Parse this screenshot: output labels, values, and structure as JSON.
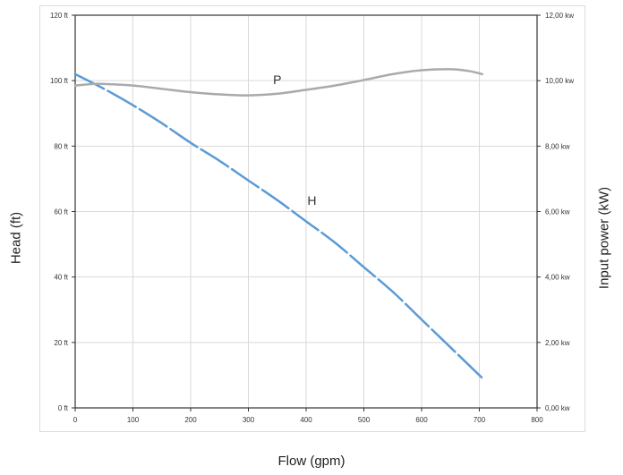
{
  "chart_data": {
    "type": "line",
    "title": "",
    "xlabel": "Flow (gpm)",
    "ylabel": "Head (ft)",
    "y2label": "Input power (kW)",
    "xlim": [
      0,
      800
    ],
    "ylim": [
      0,
      120
    ],
    "y2lim": [
      0,
      12
    ],
    "x_ticks": [
      0,
      100,
      200,
      300,
      400,
      500,
      600,
      700,
      800
    ],
    "y_ticks": [
      "0 ft",
      "20 ft",
      "40 ft",
      "60 ft",
      "80 ft",
      "100 ft",
      "120 ft"
    ],
    "y2_ticks": [
      "0,00 kw",
      "2,00 kw",
      "4,00 kw",
      "6,00 kw",
      "8,00 kw",
      "10,00 kw",
      "12,00 kw"
    ],
    "grid": true,
    "series": [
      {
        "name": "H",
        "axis": "left",
        "style": "dashed",
        "color": "#5b9bd5",
        "label_at": [
          410,
          62
        ],
        "x": [
          0,
          50,
          100,
          150,
          200,
          250,
          300,
          350,
          400,
          450,
          500,
          550,
          600,
          650,
          700,
          705
        ],
        "y": [
          102,
          97.5,
          92.5,
          87,
          81,
          75.5,
          69.5,
          63.5,
          57,
          50.5,
          43,
          35.5,
          27,
          18.5,
          10,
          9
        ]
      },
      {
        "name": "P",
        "axis": "right",
        "style": "solid",
        "color": "#aaaaaa",
        "label_at": [
          350,
          9.9
        ],
        "x": [
          0,
          30,
          50,
          100,
          150,
          200,
          250,
          300,
          350,
          400,
          450,
          500,
          550,
          600,
          650,
          680,
          705
        ],
        "y": [
          9.85,
          9.9,
          9.9,
          9.85,
          9.75,
          9.65,
          9.58,
          9.55,
          9.6,
          9.72,
          9.85,
          10.02,
          10.2,
          10.32,
          10.35,
          10.3,
          10.2
        ]
      }
    ]
  }
}
